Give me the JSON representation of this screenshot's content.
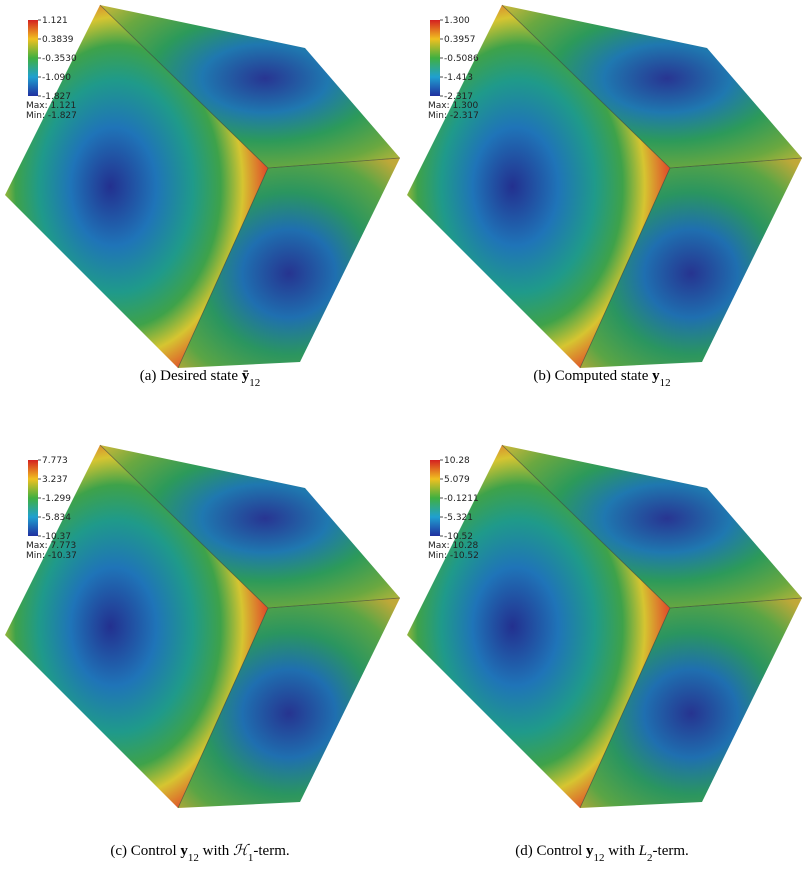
{
  "panels": [
    {
      "colorbar": [
        "1.121",
        "0.3839",
        "-0.3530",
        "-1.090",
        "-1.827"
      ],
      "max": "Max: 1.121",
      "min": "Min: -1.827",
      "caption": [
        {
          "t": "(a) Desired state "
        },
        {
          "t": "ȳ",
          "bold": true
        },
        {
          "t": "12",
          "sub": true
        }
      ]
    },
    {
      "colorbar": [
        "1.300",
        "0.3957",
        "-0.5086",
        "-1.413",
        "-2.317"
      ],
      "max": "Max: 1.300",
      "min": "Min: -2.317",
      "caption": [
        {
          "t": "(b) Computed state "
        },
        {
          "t": "y",
          "bold": true
        },
        {
          "t": "12",
          "sub": true
        }
      ]
    },
    {
      "colorbar": [
        "7.773",
        "3.237",
        "-1.299",
        "-5.834",
        "-10.37"
      ],
      "max": "Max: 7.773",
      "min": "Min: -10.37",
      "caption": [
        {
          "t": "(c) Control "
        },
        {
          "t": "y",
          "bold": true
        },
        {
          "t": "12",
          "sub": true
        },
        {
          "t": " with "
        },
        {
          "t": "ℋ",
          "italic": true
        },
        {
          "t": "1",
          "sub": true
        },
        {
          "t": "-term."
        }
      ]
    },
    {
      "colorbar": [
        "10.28",
        "5.079",
        "-0.1211",
        "-5.321",
        "-10.52"
      ],
      "max": "Max: 10.28",
      "min": "Min: -10.52",
      "caption": [
        {
          "t": "(d) Control "
        },
        {
          "t": "y",
          "bold": true
        },
        {
          "t": "12",
          "sub": true
        },
        {
          "t": " with "
        },
        {
          "t": "L",
          "italic": true
        },
        {
          "t": "2",
          "sub": true
        },
        {
          "t": "-term."
        }
      ]
    }
  ]
}
